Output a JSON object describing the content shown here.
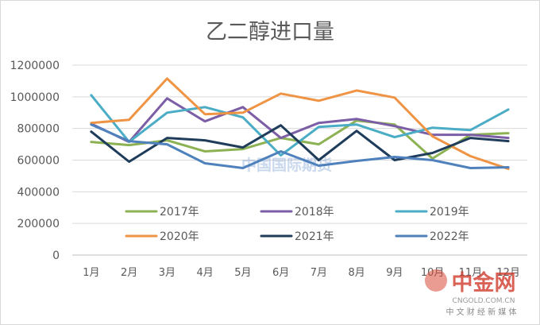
{
  "chart_data": {
    "type": "line",
    "title": "乙二醇进口量",
    "xlabel": "",
    "ylabel": "",
    "categories": [
      "1月",
      "2月",
      "3月",
      "4月",
      "5月",
      "6月",
      "7月",
      "8月",
      "9月",
      "10月",
      "11月",
      "12月"
    ],
    "ylim": [
      0,
      1200000
    ],
    "yticks": [
      0,
      200000,
      400000,
      600000,
      800000,
      1000000,
      1200000
    ],
    "grid": true,
    "legend_position": "bottom",
    "series": [
      {
        "name": "2017年",
        "color": "#8cb254",
        "values": [
          715000,
          695000,
          725000,
          655000,
          670000,
          740000,
          700000,
          850000,
          825000,
          610000,
          760000,
          770000
        ]
      },
      {
        "name": "2018年",
        "color": "#7c5ea6",
        "values": [
          830000,
          715000,
          990000,
          845000,
          935000,
          740000,
          835000,
          860000,
          815000,
          760000,
          760000,
          740000
        ]
      },
      {
        "name": "2019年",
        "color": "#4bacc6",
        "values": [
          1010000,
          715000,
          900000,
          935000,
          870000,
          630000,
          810000,
          825000,
          745000,
          805000,
          790000,
          920000
        ]
      },
      {
        "name": "2020年",
        "color": "#ef9444",
        "values": [
          835000,
          855000,
          1115000,
          890000,
          900000,
          1020000,
          975000,
          1040000,
          995000,
          750000,
          625000,
          545000
        ]
      },
      {
        "name": "2021年",
        "color": "#1f3c5a",
        "values": [
          780000,
          590000,
          740000,
          725000,
          680000,
          820000,
          600000,
          785000,
          600000,
          645000,
          740000,
          720000
        ]
      },
      {
        "name": "2022年",
        "color": "#4f81bd",
        "values": [
          825000,
          720000,
          700000,
          580000,
          550000,
          655000,
          565000,
          595000,
          620000,
          600000,
          550000,
          555000
        ]
      }
    ]
  },
  "watermark": {
    "center_text": "中国国际期货",
    "logo_text": "中金网",
    "logo_url": "CNGOLD.COM.CN",
    "logo_tagline": "中 文 财 经 新 媒 体"
  }
}
